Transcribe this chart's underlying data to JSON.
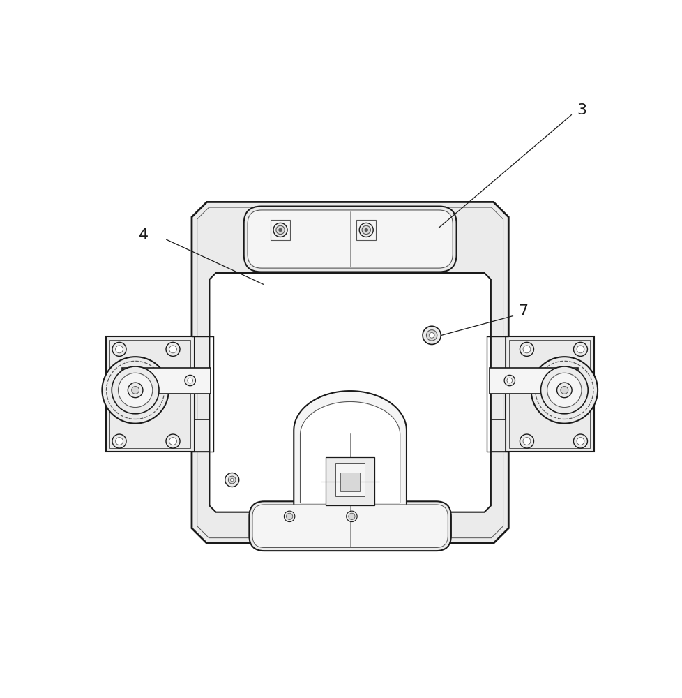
{
  "bg": "#ffffff",
  "lc": "#1a1a1a",
  "lc2": "#555555",
  "lc3": "#888888",
  "fill_light": "#f5f5f5",
  "fill_mid": "#ebebeb",
  "fill_dark": "#d8d8d8",
  "figsize": [
    9.79,
    10.0
  ],
  "dpi": 100
}
